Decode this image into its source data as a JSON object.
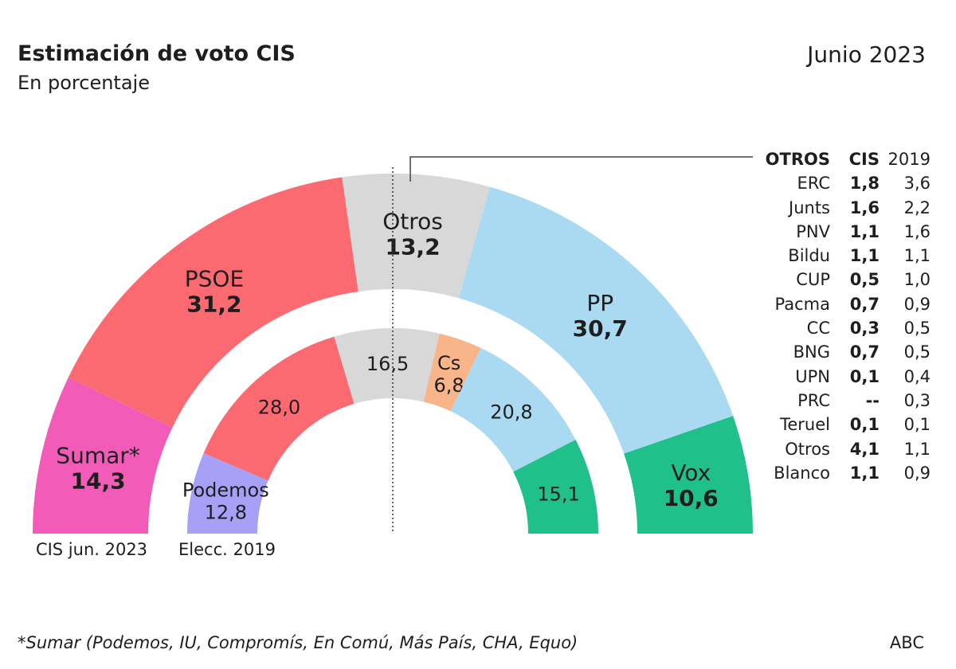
{
  "header": {
    "title": "Estimación de voto CIS",
    "subtitle": "En porcentaje",
    "date": "Junio 2023"
  },
  "footer": {
    "note": "*Sumar (Podemos, IU, Compromís, En Comú, Más País, CHA, Equo)",
    "source": "ABC"
  },
  "chart_data": [
    {
      "type": "pie",
      "variant": "semicircle-donut",
      "label": "CIS jun. 2023",
      "slices": [
        {
          "name": "Sumar*",
          "value": 14.3,
          "label": "14,3",
          "color": "#f25cb8"
        },
        {
          "name": "PSOE",
          "value": 31.2,
          "label": "31,2",
          "color": "#fb6a70"
        },
        {
          "name": "Otros",
          "value": 13.2,
          "label": "13,2",
          "color": "#d8d8d8"
        },
        {
          "name": "PP",
          "value": 30.7,
          "label": "30,7",
          "color": "#a9daf2"
        },
        {
          "name": "Vox",
          "value": 10.6,
          "label": "10,6",
          "color": "#1fc08a"
        }
      ]
    },
    {
      "type": "pie",
      "variant": "semicircle-donut",
      "label": "Elecc. 2019",
      "slices": [
        {
          "name": "Podemos",
          "value": 12.8,
          "label": "12,8",
          "color": "#a7a0f7"
        },
        {
          "name": "",
          "value": 28.0,
          "label": "28,0",
          "color": "#fb6a70"
        },
        {
          "name": "",
          "value": 16.5,
          "label": "16,5",
          "color": "#d8d8d8"
        },
        {
          "name": "Cs",
          "value": 6.8,
          "label": "6,8",
          "color": "#f9b58a"
        },
        {
          "name": "",
          "value": 20.8,
          "label": "20,8",
          "color": "#a9daf2"
        },
        {
          "name": "",
          "value": 15.1,
          "label": "15,1",
          "color": "#1fc08a"
        }
      ]
    }
  ],
  "otros_table": {
    "headers": [
      "OTROS",
      "CIS",
      "2019"
    ],
    "rows": [
      [
        "ERC",
        "1,8",
        "3,6"
      ],
      [
        "Junts",
        "1,6",
        "2,2"
      ],
      [
        "PNV",
        "1,1",
        "1,6"
      ],
      [
        "Bildu",
        "1,1",
        "1,1"
      ],
      [
        "CUP",
        "0,5",
        "1,0"
      ],
      [
        "Pacma",
        "0,7",
        "0,9"
      ],
      [
        "CC",
        "0,3",
        "0,5"
      ],
      [
        "BNG",
        "0,7",
        "0,5"
      ],
      [
        "UPN",
        "0,1",
        "0,4"
      ],
      [
        "PRC",
        "--",
        "0,3"
      ],
      [
        "Teruel",
        "0,1",
        "0,1"
      ],
      [
        "Otros",
        "4,1",
        "1,1"
      ],
      [
        "Blanco",
        "1,1",
        "0,9"
      ]
    ]
  }
}
